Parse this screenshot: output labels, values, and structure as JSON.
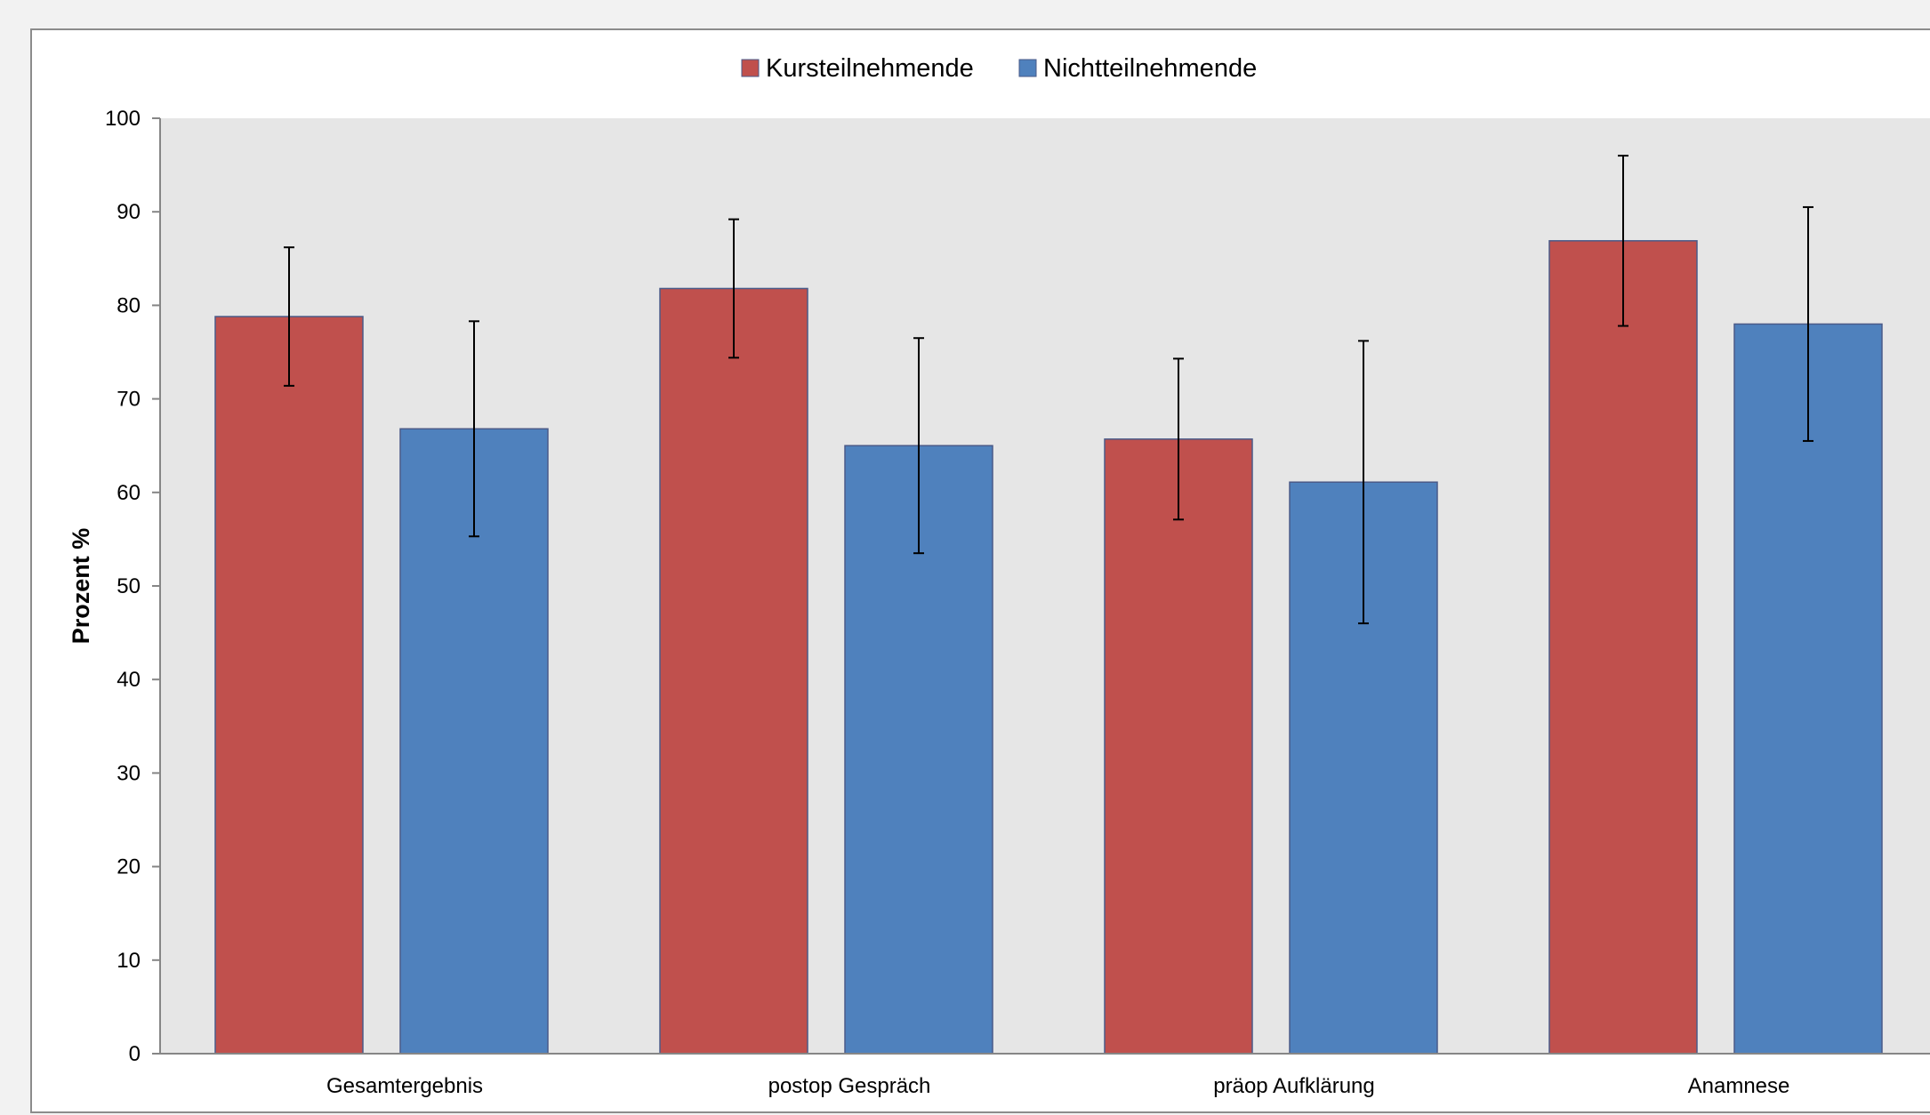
{
  "chart_data": {
    "type": "bar",
    "title": "",
    "xlabel": "",
    "ylabel": "Prozent %",
    "ylim": [
      0,
      100
    ],
    "yticks": [
      0,
      10,
      20,
      30,
      40,
      50,
      60,
      70,
      80,
      90,
      100
    ],
    "categories": [
      "Gesamtergebnis",
      "postop Gespräch",
      "präop Aufklärung",
      "Anamnese"
    ],
    "series": [
      {
        "name": "Kursteilnehmende",
        "color": "#c0504d",
        "values": [
          78.8,
          81.8,
          65.7,
          86.9
        ],
        "error_bars": [
          7.4,
          7.4,
          8.6,
          9.1
        ]
      },
      {
        "name": "Nichtteilnehmende",
        "color": "#4f81bd",
        "values": [
          66.8,
          65.0,
          61.1,
          78.0
        ],
        "error_bars": [
          11.5,
          11.5,
          15.1,
          12.5
        ]
      }
    ],
    "legend_position": "top-center",
    "grid": false,
    "plot_background": "#e6e6e6"
  }
}
